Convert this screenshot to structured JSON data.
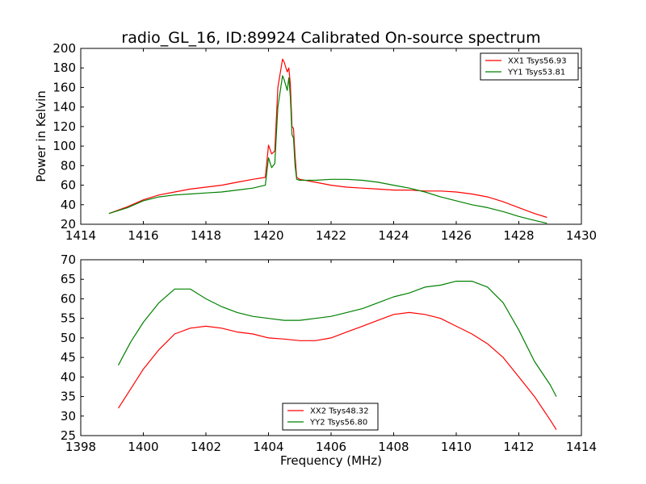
{
  "title": "radio_GL_16, ID:89924 Calibrated On-source spectrum",
  "chart_data": [
    {
      "type": "line",
      "title": "radio_GL_16, ID:89924 Calibrated On-source spectrum",
      "xlabel": "",
      "ylabel": "Power in Kelvin",
      "xlim": [
        1414,
        1430
      ],
      "ylim": [
        20,
        200
      ],
      "xticks": [
        "1414",
        "1416",
        "1418",
        "1420",
        "1422",
        "1424",
        "1426",
        "1428",
        "1430"
      ],
      "yticks": [
        "20",
        "40",
        "60",
        "80",
        "100",
        "120",
        "140",
        "160",
        "180",
        "200"
      ],
      "legend_position": "top-right",
      "series": [
        {
          "name": "XX1 Tsys56.93",
          "color": "#ff0000",
          "x": [
            1414.9,
            1415.5,
            1416,
            1416.5,
            1417,
            1417.5,
            1418,
            1418.5,
            1419,
            1419.5,
            1419.9,
            1420.0,
            1420.1,
            1420.2,
            1420.3,
            1420.45,
            1420.5,
            1420.6,
            1420.65,
            1420.7,
            1420.75,
            1420.8,
            1420.85,
            1420.9,
            1421.0,
            1421.5,
            1422,
            1422.5,
            1423,
            1423.5,
            1424,
            1424.5,
            1425,
            1425.5,
            1426,
            1426.5,
            1427,
            1427.5,
            1428,
            1428.5,
            1428.9
          ],
          "y": [
            31,
            38,
            45,
            50,
            53,
            56,
            58,
            60,
            63,
            66,
            68,
            101,
            92,
            95,
            160,
            189,
            186,
            176,
            180,
            163,
            120,
            118,
            90,
            68,
            66,
            63,
            60,
            58,
            57,
            56,
            55,
            55,
            54,
            54,
            53,
            51,
            48,
            43,
            37,
            31,
            27
          ]
        },
        {
          "name": "YY1 Tsys53.81",
          "color": "#008000",
          "x": [
            1414.9,
            1415.5,
            1416,
            1416.5,
            1417,
            1417.5,
            1418,
            1418.5,
            1419,
            1419.5,
            1419.9,
            1420.0,
            1420.1,
            1420.2,
            1420.3,
            1420.45,
            1420.5,
            1420.6,
            1420.65,
            1420.7,
            1420.75,
            1420.8,
            1420.85,
            1420.9,
            1421.0,
            1421.5,
            1422,
            1422.5,
            1423,
            1423.5,
            1424,
            1424.5,
            1425,
            1425.5,
            1426,
            1426.5,
            1427,
            1427.5,
            1428,
            1428.5,
            1428.9
          ],
          "y": [
            31,
            37,
            44,
            48,
            50,
            51,
            52,
            53,
            55,
            57,
            60,
            88,
            78,
            82,
            140,
            172,
            168,
            157,
            170,
            150,
            112,
            108,
            80,
            66,
            65,
            65,
            66,
            66,
            65,
            63,
            60,
            57,
            53,
            48,
            44,
            40,
            37,
            33,
            28,
            24,
            21
          ]
        }
      ]
    },
    {
      "type": "line",
      "title": "",
      "xlabel": "Frequency (MHz)",
      "ylabel": "",
      "xlim": [
        1398,
        1414
      ],
      "ylim": [
        25,
        70
      ],
      "xticks": [
        "1398",
        "1400",
        "1402",
        "1404",
        "1406",
        "1408",
        "1410",
        "1412",
        "1414"
      ],
      "yticks": [
        "25",
        "30",
        "35",
        "40",
        "45",
        "50",
        "55",
        "60",
        "65",
        "70"
      ],
      "legend_position": "bottom-center",
      "series": [
        {
          "name": "XX2 Tsys48.32",
          "color": "#ff0000",
          "x": [
            1399.2,
            1399.6,
            1400,
            1400.5,
            1401,
            1401.5,
            1402,
            1402.5,
            1403,
            1403.5,
            1404,
            1404.5,
            1405,
            1405.5,
            1406,
            1406.5,
            1407,
            1407.5,
            1408,
            1408.5,
            1409,
            1409.5,
            1410,
            1410.5,
            1411,
            1411.5,
            1412,
            1412.5,
            1413,
            1413.2
          ],
          "y": [
            32,
            37,
            42,
            47,
            51,
            52.5,
            53,
            52.5,
            51.5,
            51,
            50,
            49.7,
            49.3,
            49.3,
            50,
            51.5,
            53,
            54.5,
            56,
            56.5,
            56,
            55,
            53,
            51,
            48.5,
            45,
            40,
            35,
            29,
            26.5
          ]
        },
        {
          "name": "YY2 Tsys56.80",
          "color": "#008000",
          "x": [
            1399.2,
            1399.6,
            1400,
            1400.5,
            1401,
            1401.5,
            1402,
            1402.5,
            1403,
            1403.5,
            1404,
            1404.5,
            1405,
            1405.5,
            1406,
            1406.5,
            1407,
            1407.5,
            1408,
            1408.5,
            1409,
            1409.5,
            1410,
            1410.5,
            1411,
            1411.5,
            1412,
            1412.5,
            1413,
            1413.2
          ],
          "y": [
            43,
            49,
            54,
            59,
            62.5,
            62.5,
            60,
            58,
            56.5,
            55.5,
            55,
            54.5,
            54.5,
            55,
            55.5,
            56.5,
            57.5,
            59,
            60.5,
            61.5,
            63,
            63.5,
            64.5,
            64.5,
            63,
            59,
            52,
            44,
            38,
            35
          ]
        }
      ]
    }
  ]
}
